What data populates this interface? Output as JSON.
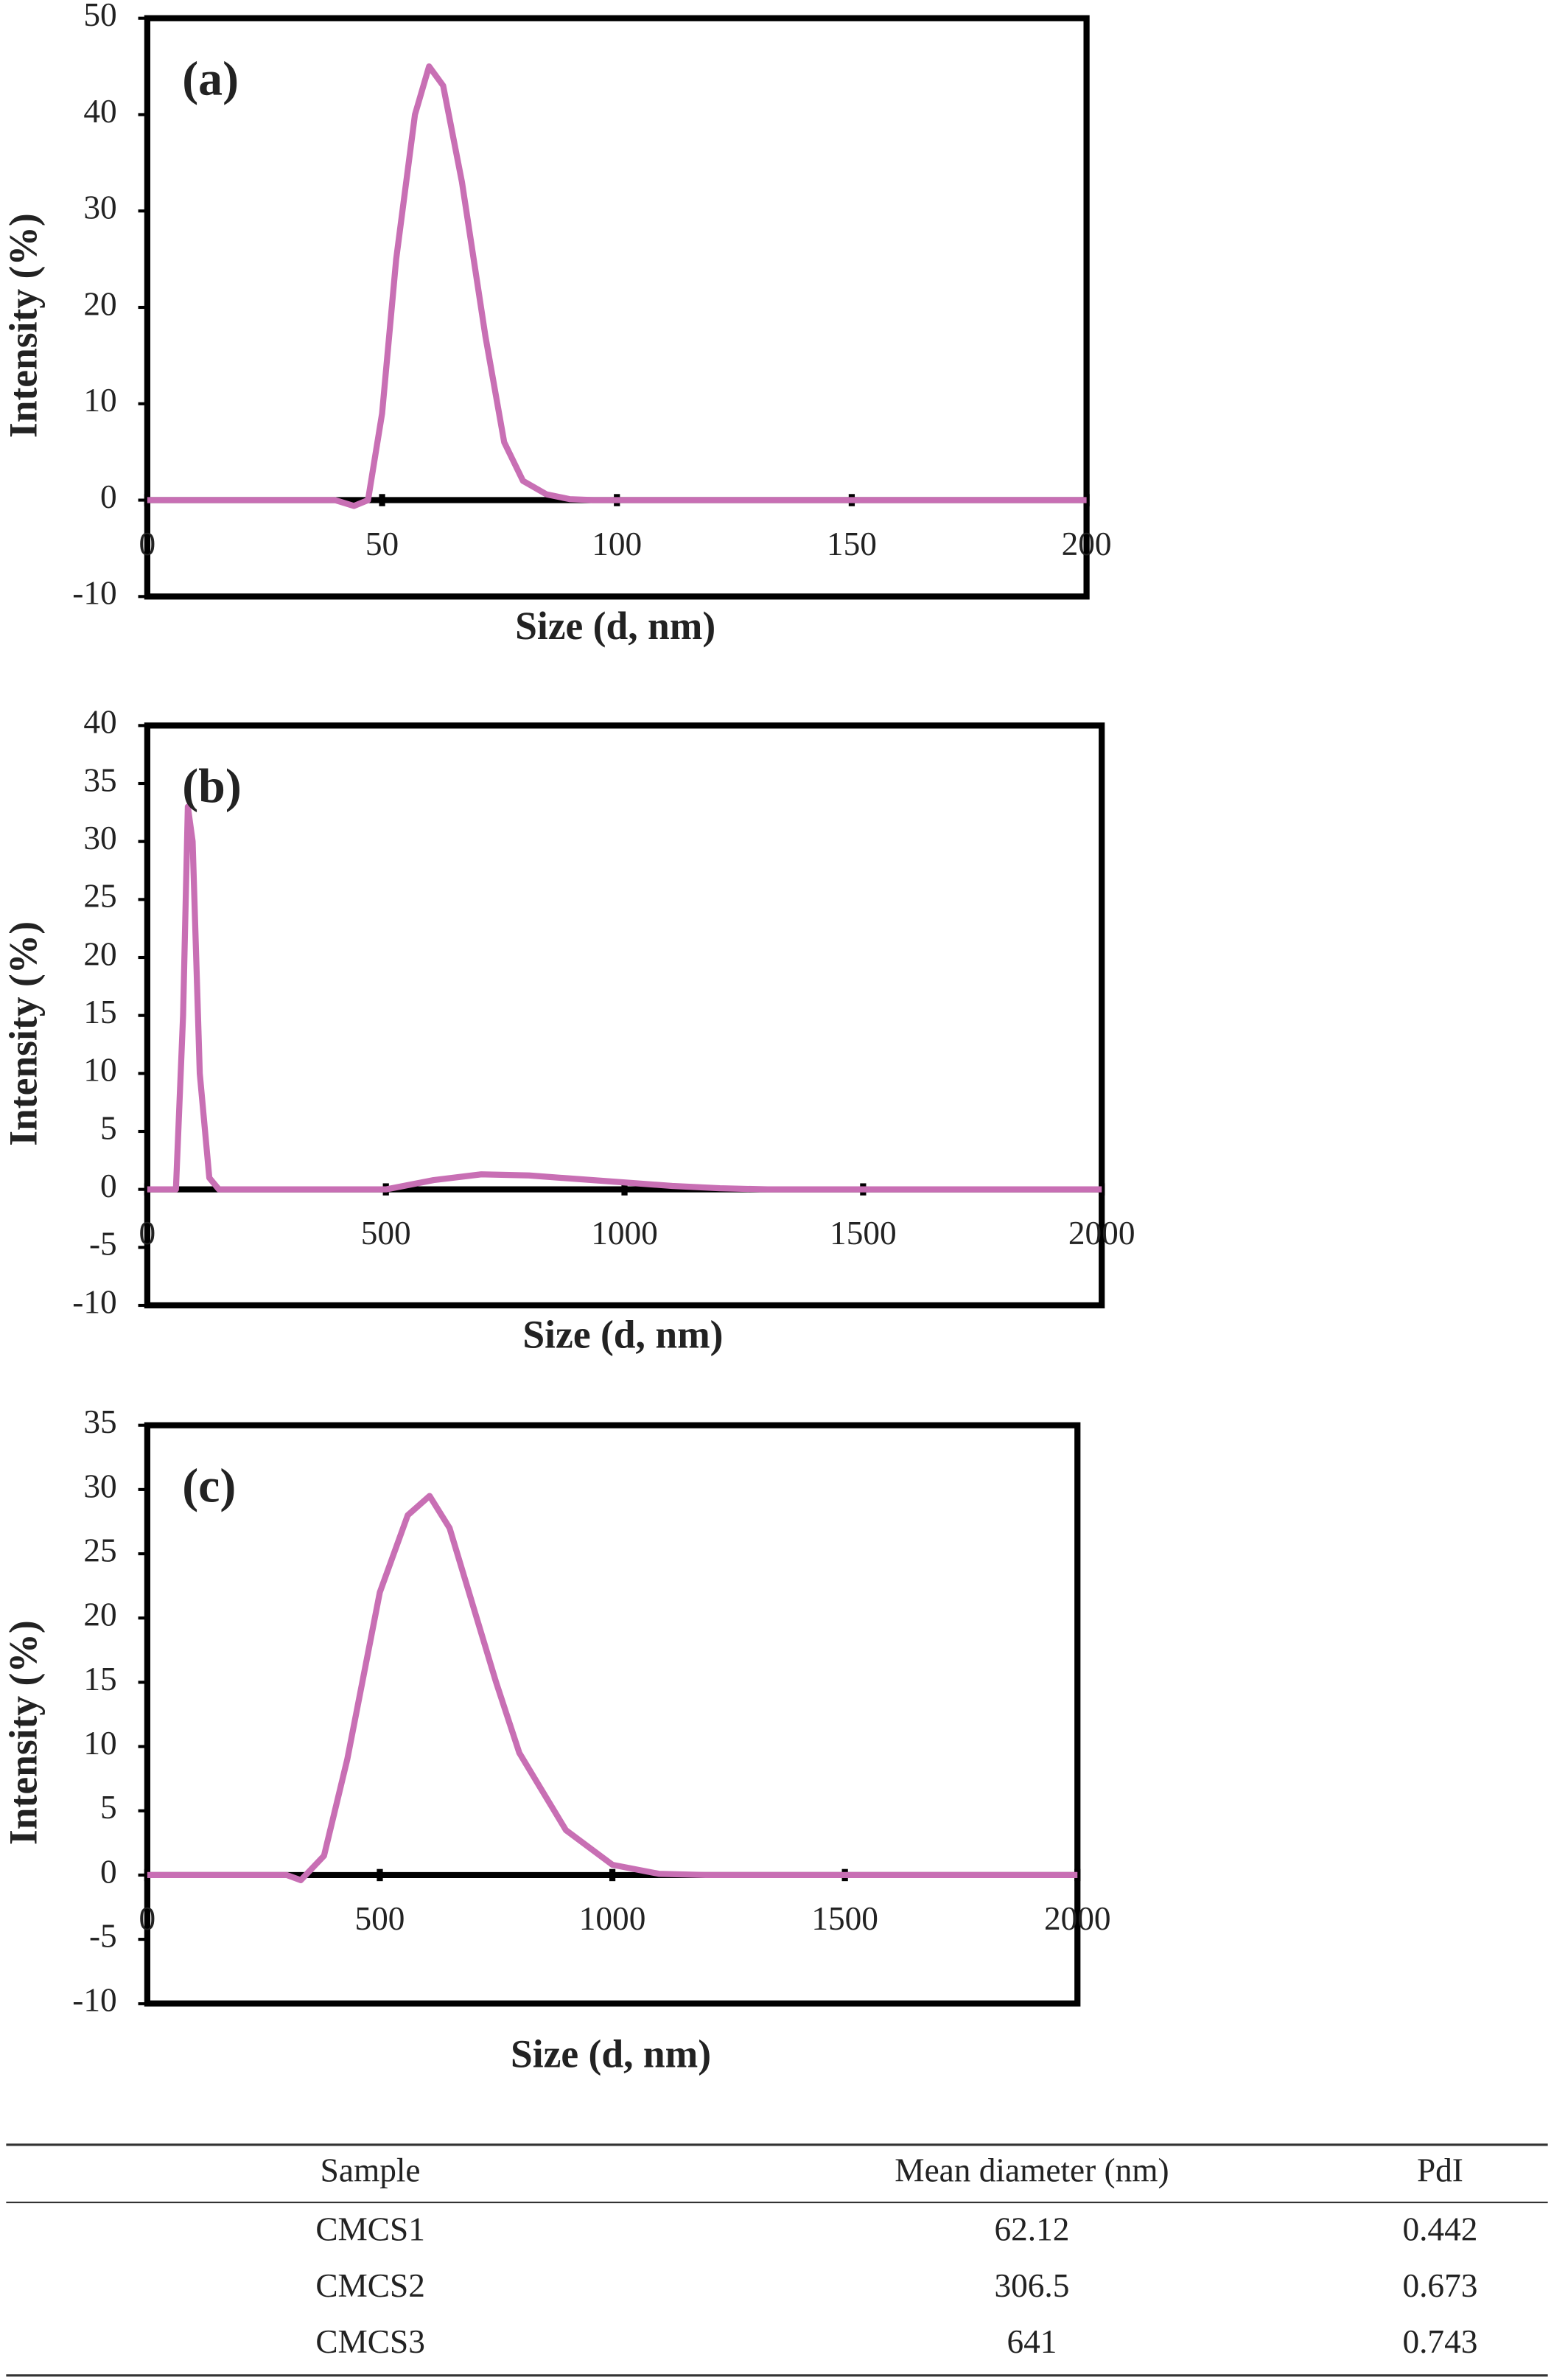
{
  "chart_data": [
    {
      "type": "line",
      "title": "(a)",
      "x_label": "Size (d, nm)",
      "y_label": "Intensity (%)",
      "x": [
        0,
        40,
        44,
        47,
        50,
        53,
        57,
        60,
        63,
        67,
        72,
        76,
        80,
        85,
        90,
        95,
        100,
        150,
        200
      ],
      "values": [
        0,
        0,
        -0.6,
        0,
        9,
        25,
        40,
        45,
        43,
        33,
        17,
        6,
        2,
        0.6,
        0.1,
        0,
        0,
        0,
        0
      ],
      "color": "#c86fb4",
      "xlim": [
        0,
        200
      ],
      "xticks": [
        0,
        50,
        100,
        150,
        200
      ],
      "ylim": [
        -10,
        50
      ],
      "yticks": [
        -10,
        0,
        10,
        20,
        30,
        40,
        50
      ]
    },
    {
      "type": "line",
      "title": "(b)",
      "x_label": "Size (d, nm)",
      "y_label": "Intensity (%)",
      "x": [
        0,
        40,
        60,
        75,
        85,
        95,
        110,
        130,
        150,
        500,
        600,
        700,
        800,
        900,
        1000,
        1100,
        1200,
        1300,
        1500,
        2000
      ],
      "values": [
        0,
        0,
        0,
        15,
        33,
        30,
        10,
        1,
        0,
        0,
        0.8,
        1.3,
        1.2,
        0.9,
        0.6,
        0.3,
        0.1,
        0,
        0,
        0
      ],
      "color": "#c86fb4",
      "xlim": [
        0,
        2000
      ],
      "xticks": [
        0,
        500,
        1000,
        1500,
        2000
      ],
      "ylim": [
        -10,
        40
      ],
      "yticks": [
        -10,
        -5,
        0,
        5,
        10,
        15,
        20,
        25,
        30,
        35,
        40
      ]
    },
    {
      "type": "line",
      "title": "(c)",
      "x_label": "Size (d, nm)",
      "y_label": "Intensity (%)",
      "x": [
        0,
        300,
        330,
        380,
        430,
        500,
        560,
        607,
        650,
        700,
        750,
        800,
        900,
        1000,
        1100,
        1200,
        1500,
        2000
      ],
      "values": [
        0,
        0,
        -0.4,
        1.5,
        9,
        22,
        28,
        29.5,
        27,
        21,
        15,
        9.5,
        3.5,
        0.8,
        0.1,
        0,
        0,
        0
      ],
      "color": "#c86fb4",
      "xlim": [
        0,
        2000
      ],
      "xticks": [
        0,
        500,
        1000,
        1500,
        2000
      ],
      "ylim": [
        -10,
        35
      ],
      "yticks": [
        -10,
        -5,
        0,
        5,
        10,
        15,
        20,
        25,
        30,
        35
      ]
    }
  ],
  "table": {
    "header": [
      "Sample",
      "Mean diameter (nm)",
      "PdI"
    ],
    "rows": [
      [
        "CMCS1",
        "62.12",
        "0.442"
      ],
      [
        "CMCS2",
        "306.5",
        "0.673"
      ],
      [
        "CMCS3",
        "641",
        "0.743"
      ]
    ]
  }
}
